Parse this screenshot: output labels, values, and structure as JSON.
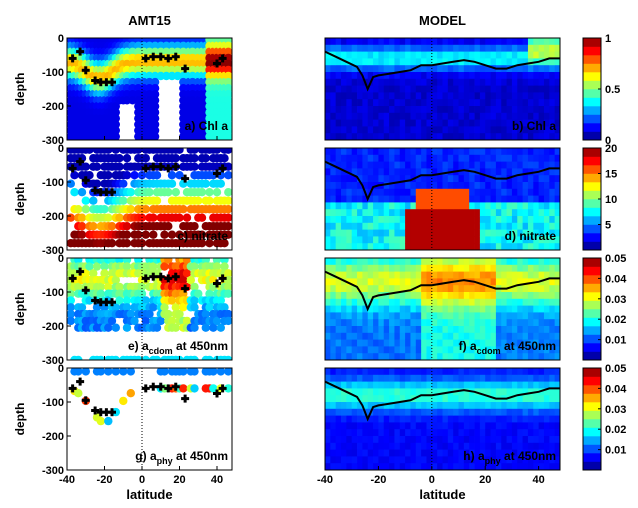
{
  "figure": {
    "col_titles": [
      "AMT15",
      "MODEL"
    ],
    "ylabel": "depth",
    "xlabel": "latitude"
  },
  "chart_data": [
    {
      "type": "scatter",
      "column": "AMT15",
      "panel_label": "a) Chl a",
      "xlim": [
        -40,
        48
      ],
      "ylim": [
        -300,
        0
      ],
      "xticks": [
        -40,
        -20,
        0,
        20,
        40
      ],
      "yticks": [
        0,
        -100,
        -200,
        -300
      ],
      "ytick_labels": [
        "0",
        "-100",
        "-200",
        "-300"
      ],
      "profile_latitudes": [
        -38,
        -36,
        -34,
        -32,
        -30,
        -28,
        -26,
        -24,
        -22,
        -20,
        -18,
        -16,
        -14,
        -12,
        -10,
        -8,
        -5,
        -2,
        1,
        4,
        7,
        10,
        13,
        16,
        19,
        22,
        25,
        27,
        30,
        32,
        34,
        36,
        38,
        40,
        42,
        44,
        46
      ],
      "samples_per_profile": 17,
      "sample_depth_max": 290,
      "dcm_markers": {
        "lat": [
          -37,
          -33,
          -30,
          -25,
          -22,
          -19,
          -16,
          2,
          6,
          10,
          14,
          18,
          23,
          40,
          43
        ],
        "depth": [
          -60,
          -40,
          -95,
          -125,
          -130,
          -130,
          -130,
          -60,
          -55,
          -55,
          -60,
          -55,
          -90,
          -75,
          -60
        ]
      }
    },
    {
      "type": "scatter",
      "column": "AMT15",
      "panel_label": "c) nitrate",
      "xlim": [
        -40,
        48
      ],
      "ylim": [
        -300,
        0
      ],
      "xticks": [
        -40,
        -20,
        0,
        20,
        40
      ],
      "yticks": [
        0,
        -100,
        -200,
        -300
      ],
      "ytick_labels": [
        "0",
        "-100",
        "-200",
        "-300"
      ],
      "dcm_markers": {
        "lat": [
          -37,
          -33,
          -30,
          -25,
          -22,
          -19,
          -16,
          2,
          6,
          10,
          14,
          18,
          23,
          40,
          43
        ],
        "depth": [
          -60,
          -40,
          -95,
          -125,
          -130,
          -130,
          -130,
          -60,
          -55,
          -55,
          -60,
          -55,
          -90,
          -75,
          -60
        ]
      }
    },
    {
      "type": "scatter",
      "column": "AMT15",
      "panel_label": "e) a",
      "panel_label_sub": "cdom",
      "panel_label_tail": " at 450nm",
      "xlim": [
        -40,
        48
      ],
      "ylim": [
        -300,
        0
      ],
      "xticks": [
        -40,
        -20,
        0,
        20,
        40
      ],
      "yticks": [
        0,
        -100,
        -200,
        -300
      ],
      "ytick_labels": [
        "0",
        "-100",
        "-200",
        "-300"
      ],
      "dcm_markers": {
        "lat": [
          -37,
          -33,
          -30,
          -25,
          -22,
          -19,
          -16,
          2,
          6,
          10,
          14,
          18,
          23,
          40,
          43
        ],
        "depth": [
          -60,
          -40,
          -95,
          -125,
          -130,
          -130,
          -130,
          -60,
          -55,
          -55,
          -60,
          -55,
          -90,
          -75,
          -60
        ]
      }
    },
    {
      "type": "scatter",
      "column": "AMT15",
      "panel_label": "g) a",
      "panel_label_sub": "phy",
      "panel_label_tail": " at 450nm",
      "xlim": [
        -40,
        48
      ],
      "ylim": [
        -300,
        0
      ],
      "xticks": [
        -40,
        -20,
        0,
        20,
        40
      ],
      "xtick_labels": [
        "-40",
        "-20",
        "0",
        "20",
        "40"
      ],
      "yticks": [
        0,
        -100,
        -200,
        -300
      ],
      "ytick_labels": [
        "0",
        "-100",
        "-200",
        "-300"
      ],
      "dcm_markers": {
        "lat": [
          -37,
          -33,
          -30,
          -25,
          -22,
          -19,
          -16,
          2,
          6,
          10,
          14,
          18,
          23,
          40,
          43
        ],
        "depth": [
          -60,
          -40,
          -95,
          -125,
          -130,
          -130,
          -130,
          -60,
          -55,
          -55,
          -60,
          -55,
          -90,
          -75,
          -60
        ]
      }
    },
    {
      "type": "heatmap",
      "column": "MODEL",
      "panel_label": "b) Chl a",
      "xlim": [
        -40,
        48
      ],
      "ylim": [
        -300,
        0
      ],
      "colorbar": {
        "ticks": [
          0,
          0.5,
          1
        ],
        "tick_labels": [
          "0",
          "0.5",
          "1"
        ],
        "range": [
          0,
          1
        ]
      },
      "mld_line": {
        "lat": [
          -40,
          -36,
          -32,
          -28,
          -26,
          -24,
          -22,
          -20,
          -16,
          -12,
          -8,
          -4,
          0,
          4,
          8,
          12,
          16,
          20,
          24,
          28,
          32,
          36,
          40,
          44,
          48
        ],
        "depth": [
          -40,
          -55,
          -70,
          -85,
          -110,
          -150,
          -115,
          -110,
          -105,
          -100,
          -95,
          -80,
          -80,
          -75,
          -70,
          -65,
          -70,
          -80,
          -90,
          -90,
          -80,
          -75,
          -70,
          -60,
          -60
        ]
      }
    },
    {
      "type": "heatmap",
      "column": "MODEL",
      "panel_label": "d) nitrate",
      "xlim": [
        -40,
        48
      ],
      "ylim": [
        -300,
        0
      ],
      "colorbar": {
        "ticks": [
          5,
          10,
          15,
          20
        ],
        "tick_labels": [
          "5",
          "10",
          "15",
          "20"
        ],
        "range": [
          0,
          20
        ]
      },
      "mld_line": {
        "lat": [
          -40,
          -36,
          -32,
          -28,
          -26,
          -24,
          -22,
          -20,
          -16,
          -12,
          -8,
          -4,
          0,
          4,
          8,
          12,
          16,
          20,
          24,
          28,
          32,
          36,
          40,
          44,
          48
        ],
        "depth": [
          -40,
          -55,
          -70,
          -85,
          -110,
          -150,
          -115,
          -110,
          -105,
          -100,
          -95,
          -80,
          -80,
          -75,
          -70,
          -65,
          -70,
          -80,
          -90,
          -90,
          -80,
          -75,
          -70,
          -60,
          -60
        ]
      }
    },
    {
      "type": "heatmap",
      "column": "MODEL",
      "panel_label": "f) a",
      "panel_label_sub": "cdom",
      "panel_label_tail": " at 450nm",
      "xlim": [
        -40,
        48
      ],
      "ylim": [
        -300,
        0
      ],
      "colorbar": {
        "ticks": [
          0.01,
          0.02,
          0.03,
          0.04,
          0.05
        ],
        "tick_labels": [
          "0.01",
          "0.02",
          "0.03",
          "0.04",
          "0.05"
        ],
        "range": [
          0,
          0.05
        ]
      },
      "mld_line": {
        "lat": [
          -40,
          -36,
          -32,
          -28,
          -26,
          -24,
          -22,
          -20,
          -16,
          -12,
          -8,
          -4,
          0,
          4,
          8,
          12,
          16,
          20,
          24,
          28,
          32,
          36,
          40,
          44,
          48
        ],
        "depth": [
          -40,
          -55,
          -70,
          -85,
          -110,
          -150,
          -115,
          -110,
          -105,
          -100,
          -95,
          -80,
          -80,
          -75,
          -70,
          -65,
          -70,
          -80,
          -90,
          -90,
          -80,
          -75,
          -70,
          -60,
          -60
        ]
      }
    },
    {
      "type": "heatmap",
      "column": "MODEL",
      "panel_label": "h) a",
      "panel_label_sub": "phy",
      "panel_label_tail": " at 450nm",
      "xlim": [
        -40,
        48
      ],
      "ylim": [
        -300,
        0
      ],
      "xticks": [
        -40,
        -20,
        0,
        20,
        40
      ],
      "xtick_labels": [
        "-40",
        "-20",
        "0",
        "20",
        "40"
      ],
      "colorbar": {
        "ticks": [
          0.01,
          0.02,
          0.03,
          0.04,
          0.05
        ],
        "tick_labels": [
          "0.01",
          "0.02",
          "0.03",
          "0.04",
          "0.05"
        ],
        "range": [
          0,
          0.05
        ]
      },
      "mld_line": {
        "lat": [
          -40,
          -36,
          -32,
          -28,
          -26,
          -24,
          -22,
          -20,
          -16,
          -12,
          -8,
          -4,
          0,
          4,
          8,
          12,
          16,
          20,
          24,
          28,
          32,
          36,
          40,
          44,
          48
        ],
        "depth": [
          -40,
          -55,
          -70,
          -85,
          -110,
          -150,
          -115,
          -110,
          -105,
          -100,
          -95,
          -80,
          -80,
          -75,
          -70,
          -65,
          -70,
          -80,
          -90,
          -90,
          -80,
          -75,
          -70,
          -60,
          -60
        ]
      }
    }
  ]
}
